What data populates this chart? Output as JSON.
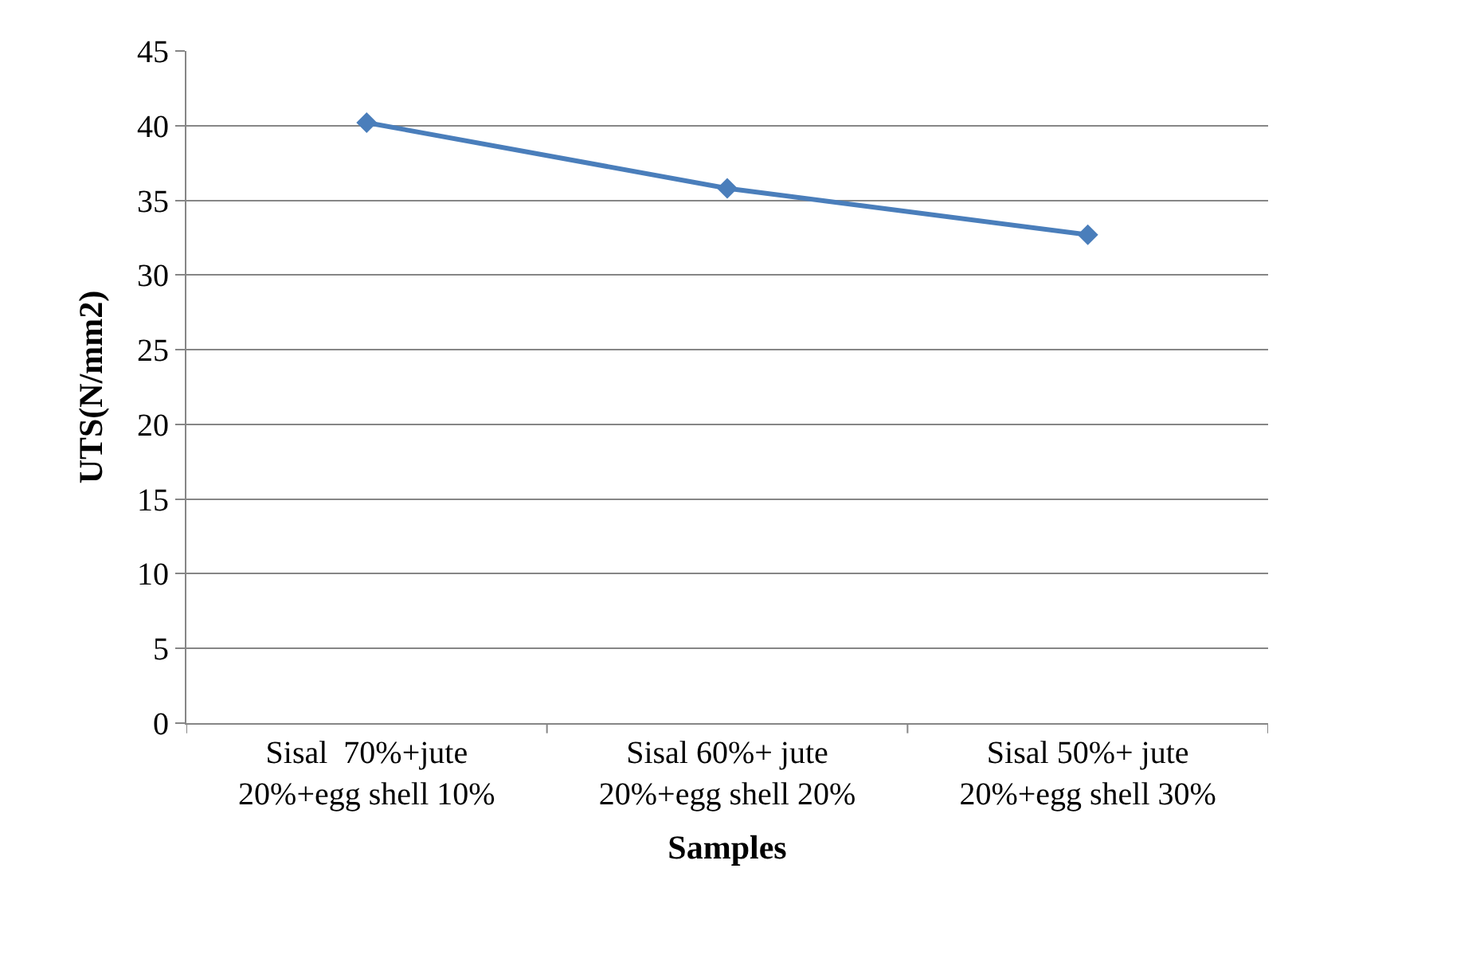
{
  "chart_data": {
    "type": "line",
    "xlabel": "Samples",
    "ylabel": "UTS(N/mm2)",
    "categories": [
      "Sisal  70%+jute\n20%+egg shell 10%",
      "Sisal 60%+ jute\n20%+egg shell 20%",
      "Sisal 50%+ jute\n20%+egg shell 30%"
    ],
    "series": [
      {
        "color": "#4a7ebb",
        "values": [
          40.2,
          35.8,
          32.7
        ]
      }
    ],
    "ylim": [
      0,
      45
    ],
    "yticks": [
      0,
      5,
      10,
      15,
      20,
      25,
      30,
      35,
      40,
      45
    ],
    "grid": "y",
    "marker": "diamond",
    "line_style": "solid"
  }
}
